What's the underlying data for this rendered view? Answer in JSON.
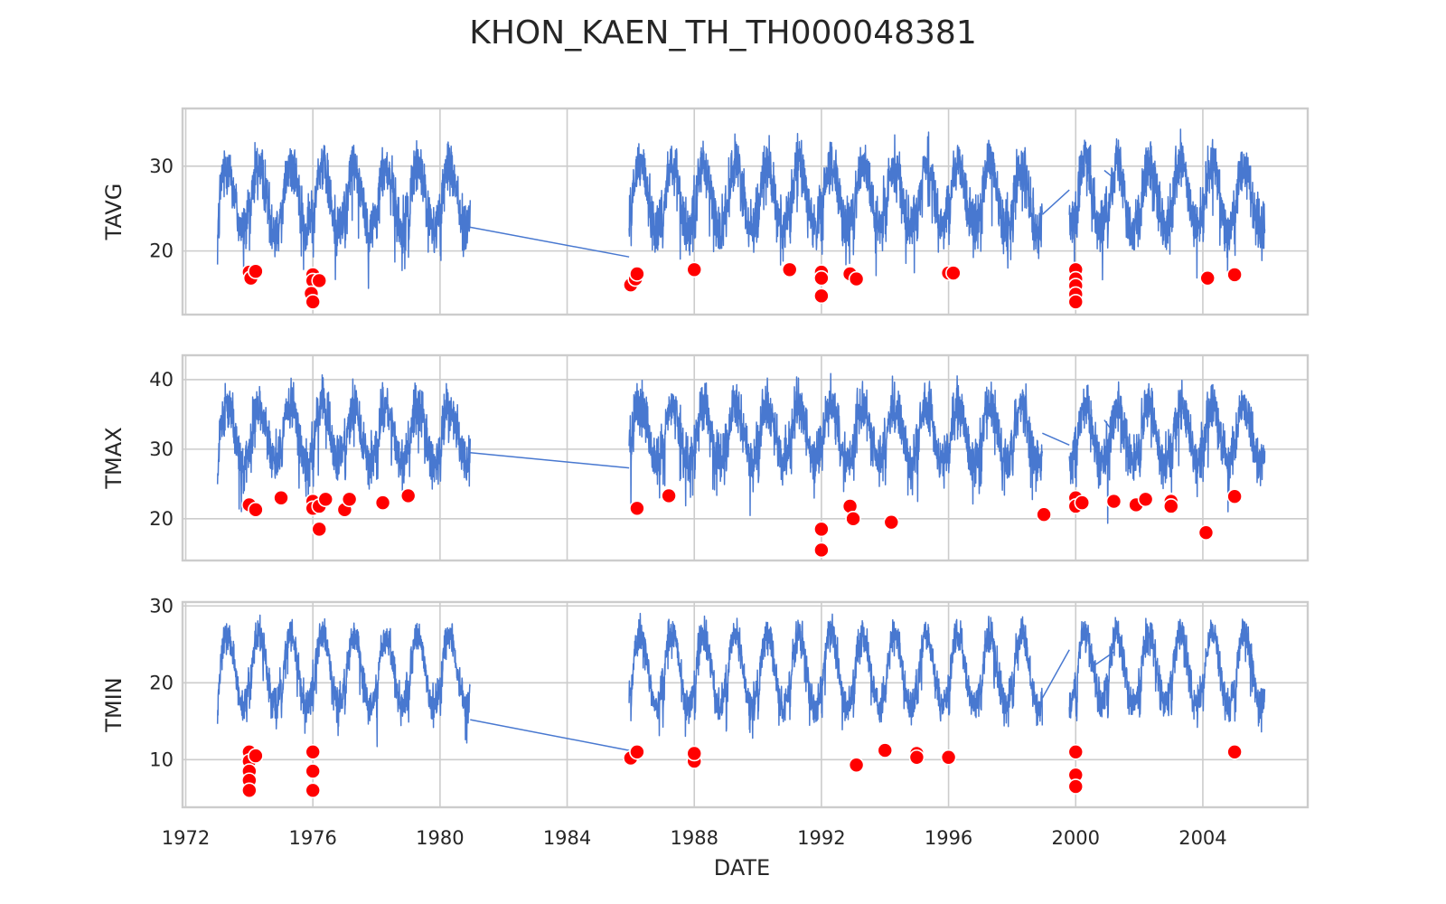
{
  "chart_data": {
    "type": "line",
    "title": "KHON_KAEN_TH_TH000048381",
    "xlabel": "DATE",
    "xlim": [
      1971.9,
      2007.3
    ],
    "x_ticks": [
      "1972",
      "1976",
      "1980",
      "1984",
      "1988",
      "1992",
      "1996",
      "2000",
      "2004"
    ],
    "grid": true,
    "line_color": "#4878d0",
    "outlier_color": "#ff0000",
    "panels": [
      {
        "ylabel": "TAVG",
        "ylim": [
          12.5,
          36.8
        ],
        "yticks": [
          20,
          30
        ],
        "amp": 4.3,
        "noise": 2.2,
        "series": [
          {
            "segment": "1973-1981",
            "x_start": 1973.0,
            "x_end": 1980.95,
            "mean": 26.3
          },
          {
            "segment": "1986-1999",
            "x_start": 1985.95,
            "x_end": 1998.95,
            "mean": 26.5
          },
          {
            "segment": "1999-2006",
            "x_start": 1999.8,
            "x_end": 2005.95,
            "mean": 26.5
          }
        ],
        "connectors": [
          [
            [
              1980.95,
              22.8
            ],
            [
              1985.95,
              19.3
            ]
          ],
          [
            [
              1998.95,
              24.3
            ],
            [
              1999.8,
              27.2
            ]
          ],
          [
            [
              2000.9,
              29.5
            ],
            [
              2001.2,
              28.6
            ]
          ]
        ],
        "outliers": [
          [
            1974.0,
            17.5
          ],
          [
            1974.05,
            16.8
          ],
          [
            1974.2,
            17.6
          ],
          [
            1976.0,
            17.2
          ],
          [
            1976.0,
            16.5
          ],
          [
            1975.95,
            15.0
          ],
          [
            1976.0,
            14.0
          ],
          [
            1976.2,
            16.5
          ],
          [
            1986.0,
            16.0
          ],
          [
            1986.15,
            16.7
          ],
          [
            1986.2,
            17.3
          ],
          [
            1988.0,
            17.8
          ],
          [
            1991.0,
            17.8
          ],
          [
            1992.0,
            17.5
          ],
          [
            1992.0,
            16.8
          ],
          [
            1992.0,
            14.7
          ],
          [
            1992.9,
            17.3
          ],
          [
            1993.1,
            16.7
          ],
          [
            1996.0,
            17.4
          ],
          [
            1996.15,
            17.4
          ],
          [
            2000.0,
            17.8
          ],
          [
            2000.0,
            16.7
          ],
          [
            2000.0,
            15.9
          ],
          [
            2000.0,
            14.9
          ],
          [
            2000.0,
            14.0
          ],
          [
            2004.15,
            16.8
          ],
          [
            2005.0,
            17.2
          ]
        ]
      },
      {
        "ylabel": "TMAX",
        "ylim": [
          14.0,
          43.5
        ],
        "yticks": [
          20,
          30,
          40
        ],
        "amp": 4.6,
        "noise": 2.5,
        "series": [
          {
            "segment": "1973-1981",
            "x_start": 1973.0,
            "x_end": 1980.95,
            "mean": 32.2
          },
          {
            "segment": "1986-1999",
            "x_start": 1985.95,
            "x_end": 1998.95,
            "mean": 32.3
          },
          {
            "segment": "1999-2006",
            "x_start": 1999.8,
            "x_end": 2005.95,
            "mean": 32.2
          }
        ],
        "connectors": [
          [
            [
              1980.95,
              29.5
            ],
            [
              1985.95,
              27.3
            ]
          ],
          [
            [
              1998.95,
              32.3
            ],
            [
              1999.8,
              30.6
            ]
          ],
          [
            [
              2000.9,
              34.2
            ],
            [
              2001.2,
              32.3
            ]
          ]
        ],
        "outliers": [
          [
            1974.0,
            22.0
          ],
          [
            1974.2,
            21.3
          ],
          [
            1975.0,
            23.0
          ],
          [
            1976.0,
            22.5
          ],
          [
            1976.0,
            21.5
          ],
          [
            1976.2,
            21.8
          ],
          [
            1976.2,
            18.5
          ],
          [
            1976.4,
            22.8
          ],
          [
            1977.0,
            21.3
          ],
          [
            1977.15,
            22.8
          ],
          [
            1978.2,
            22.3
          ],
          [
            1979.0,
            23.3
          ],
          [
            1986.2,
            21.5
          ],
          [
            1987.2,
            23.3
          ],
          [
            1992.0,
            18.5
          ],
          [
            1992.0,
            15.5
          ],
          [
            1992.9,
            21.8
          ],
          [
            1993.0,
            20.0
          ],
          [
            1994.2,
            19.5
          ],
          [
            1999.0,
            20.6
          ],
          [
            2000.0,
            23.0
          ],
          [
            2000.0,
            21.8
          ],
          [
            2000.2,
            22.3
          ],
          [
            2001.2,
            22.5
          ],
          [
            2001.9,
            22.0
          ],
          [
            2002.2,
            22.8
          ],
          [
            2003.0,
            22.5
          ],
          [
            2003.0,
            21.8
          ],
          [
            2004.1,
            18.0
          ],
          [
            2005.0,
            23.2
          ]
        ]
      },
      {
        "ylabel": "TMIN",
        "ylim": [
          3.8,
          30.5
        ],
        "yticks": [
          10,
          20,
          30
        ],
        "amp": 5.2,
        "noise": 1.6,
        "series": [
          {
            "segment": "1973-1981",
            "x_start": 1973.0,
            "x_end": 1980.95,
            "mean": 21.6
          },
          {
            "segment": "1986-1999",
            "x_start": 1985.95,
            "x_end": 1998.95,
            "mean": 21.6
          },
          {
            "segment": "1999-2006",
            "x_start": 1999.8,
            "x_end": 2005.95,
            "mean": 21.8
          }
        ],
        "connectors": [
          [
            [
              1980.95,
              15.2
            ],
            [
              1985.95,
              11.2
            ]
          ],
          [
            [
              1998.95,
              18.0
            ],
            [
              1999.8,
              24.3
            ]
          ],
          [
            [
              2000.6,
              22.3
            ],
            [
              2001.2,
              24.0
            ]
          ]
        ],
        "outliers": [
          [
            1974.0,
            11.0
          ],
          [
            1974.0,
            9.8
          ],
          [
            1974.0,
            8.5
          ],
          [
            1974.0,
            7.3
          ],
          [
            1974.0,
            6.0
          ],
          [
            1974.2,
            10.5
          ],
          [
            1976.0,
            11.0
          ],
          [
            1976.0,
            8.5
          ],
          [
            1976.0,
            6.0
          ],
          [
            1986.0,
            10.2
          ],
          [
            1986.2,
            11.0
          ],
          [
            1988.0,
            9.8
          ],
          [
            1988.0,
            10.8
          ],
          [
            1993.1,
            9.3
          ],
          [
            1994.0,
            11.2
          ],
          [
            1995.0,
            10.8
          ],
          [
            1995.0,
            10.3
          ],
          [
            1996.0,
            10.3
          ],
          [
            2000.0,
            11.0
          ],
          [
            2000.0,
            8.0
          ],
          [
            2000.0,
            6.5
          ],
          [
            2005.0,
            11.0
          ]
        ]
      }
    ]
  }
}
